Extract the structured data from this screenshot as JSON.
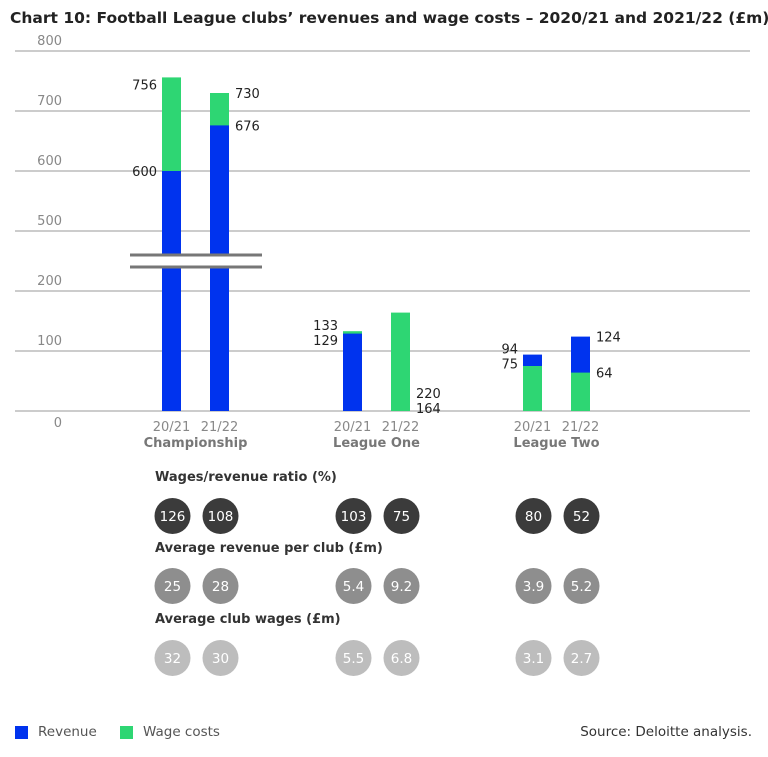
{
  "chart_data": {
    "type": "bar",
    "title": "Chart 10: Football League clubs’ revenues and wage costs – 2020/21 and 2021/22 (£m)",
    "y_ticks": [
      "0",
      "100",
      "200",
      "500",
      "600",
      "700",
      "800"
    ],
    "y_axis_break": [
      200,
      500
    ],
    "groups": [
      "Championship",
      "League One",
      "League Two"
    ],
    "periods": [
      "20/21",
      "21/22"
    ],
    "series": [
      {
        "name": "Revenue",
        "color": "#0033ee",
        "values": [
          600,
          676,
          129,
          220,
          94,
          124
        ]
      },
      {
        "name": "Wage costs",
        "color": "#2ed673",
        "values": [
          756,
          730,
          133,
          164,
          75,
          64
        ]
      }
    ],
    "grid": true,
    "legend": "bottom-left"
  },
  "metrics": [
    {
      "heading": "Wages/revenue ratio (%)",
      "color": "#3b3b3b",
      "values": [
        "126",
        "108",
        "103",
        "75",
        "80",
        "52"
      ]
    },
    {
      "heading": "Average revenue per club (£m)",
      "color": "#8e8e8e",
      "values": [
        "25",
        "28",
        "5.4",
        "9.2",
        "3.9",
        "5.2"
      ]
    },
    {
      "heading": "Average club wages (£m)",
      "color": "#bdbdbd",
      "values": [
        "32",
        "30",
        "5.5",
        "6.8",
        "3.1",
        "2.7"
      ]
    }
  ],
  "source": "Source: Deloitte analysis."
}
